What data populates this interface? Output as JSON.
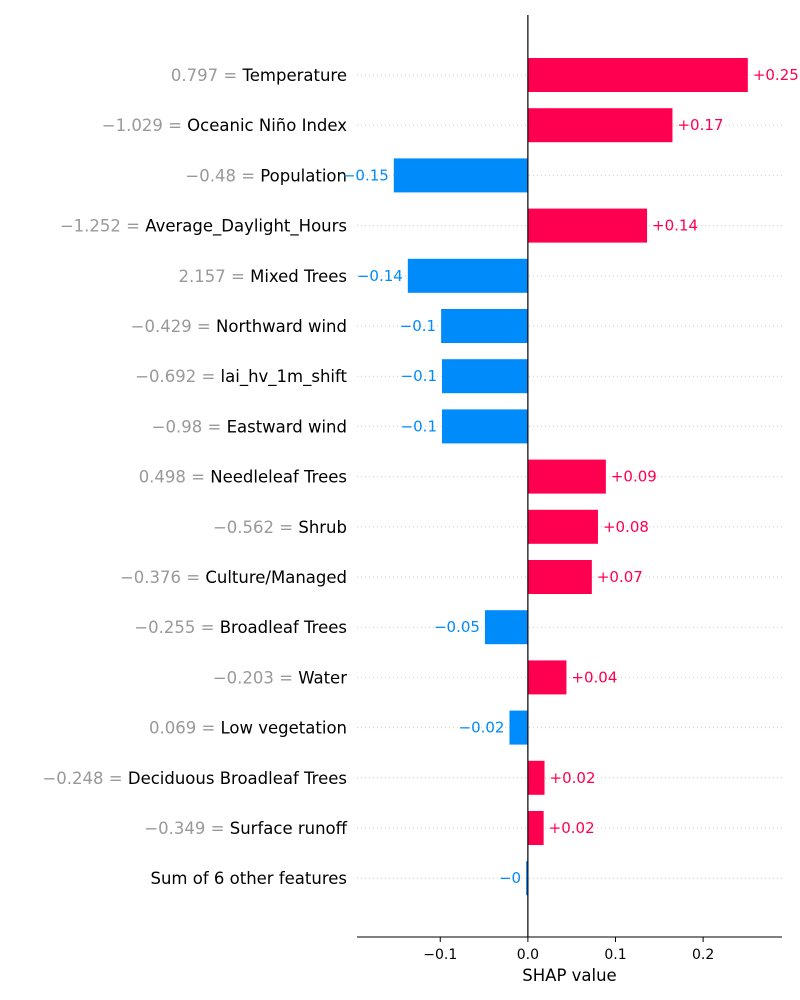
{
  "chart_data": {
    "type": "bar",
    "orientation": "horizontal",
    "xlabel": "SHAP value",
    "xlim": [
      -0.195,
      0.29
    ],
    "xticks": [
      -0.1,
      0.0,
      0.1,
      0.2
    ],
    "xtick_labels": [
      "−0.1",
      "0.0",
      "0.1",
      "0.2"
    ],
    "positive_color": "#ff0051",
    "negative_color": "#008bfb",
    "features": [
      {
        "value": "0.797",
        "name": "Temperature",
        "shap": 0.251,
        "label": "+0.25"
      },
      {
        "value": "−1.029",
        "name": "Oceanic Niño Index",
        "shap": 0.165,
        "label": "+0.17"
      },
      {
        "value": "−0.48",
        "name": "Population",
        "shap": -0.153,
        "label": "−0.15"
      },
      {
        "value": "−1.252",
        "name": "Average_Daylight_Hours",
        "shap": 0.136,
        "label": "+0.14"
      },
      {
        "value": "2.157",
        "name": "Mixed Trees",
        "shap": -0.137,
        "label": "−0.14"
      },
      {
        "value": "−0.429",
        "name": "Northward wind",
        "shap": -0.099,
        "label": "−0.1"
      },
      {
        "value": "−0.692",
        "name": "lai_hv_1m_shift",
        "shap": -0.098,
        "label": "−0.1"
      },
      {
        "value": "−0.98",
        "name": "Eastward wind",
        "shap": -0.098,
        "label": "−0.1"
      },
      {
        "value": "0.498",
        "name": "Needleleaf Trees",
        "shap": 0.089,
        "label": "+0.09"
      },
      {
        "value": "−0.562",
        "name": "Shrub",
        "shap": 0.08,
        "label": "+0.08"
      },
      {
        "value": "−0.376",
        "name": "Culture/Managed",
        "shap": 0.073,
        "label": "+0.07"
      },
      {
        "value": "−0.255",
        "name": "Broadleaf Trees",
        "shap": -0.049,
        "label": "−0.05"
      },
      {
        "value": "−0.203",
        "name": "Water",
        "shap": 0.044,
        "label": "+0.04"
      },
      {
        "value": "0.069",
        "name": "Low vegetation",
        "shap": -0.021,
        "label": "−0.02"
      },
      {
        "value": "−0.248",
        "name": "Deciduous Broadleaf Trees",
        "shap": 0.019,
        "label": "+0.02"
      },
      {
        "value": "−0.349",
        "name": "Surface runoff",
        "shap": 0.018,
        "label": "+0.02"
      },
      {
        "value": "",
        "name": "Sum of 6 other features",
        "shap": -0.002,
        "label": "−0"
      }
    ]
  }
}
